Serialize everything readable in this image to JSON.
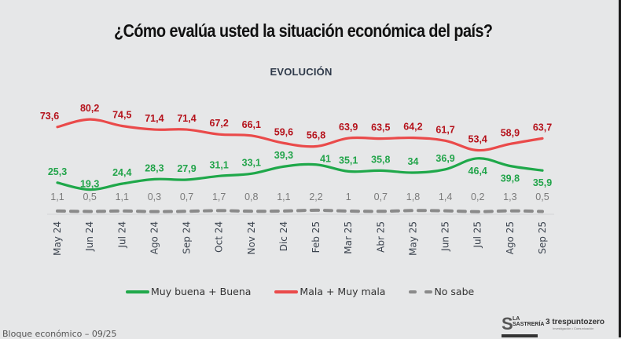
{
  "title": "¿Cómo evalúa usted la situación económica del país?",
  "subtitle": "EVOLUCIÓN",
  "footer": "Bloque económico – 09/25",
  "logos": {
    "left": {
      "mark": "S",
      "name": "LA\nSASTRERÍA"
    },
    "right": {
      "mark": "3",
      "name": "trespuntozero",
      "tag": "Investigación • Comunicación"
    }
  },
  "legend": [
    {
      "label": "Muy buena + Buena",
      "color": "#1fa84a",
      "style": "solid"
    },
    {
      "label": "Mala + Muy mala",
      "color": "#ea4a4a",
      "style": "solid"
    },
    {
      "label": "No sabe",
      "color": "#8a8a8a",
      "style": "dashed"
    }
  ],
  "chart_data": {
    "type": "line",
    "title": "¿Cómo evalúa usted la situación económica del país?",
    "subtitle": "EVOLUCIÓN",
    "xlabel": "",
    "ylabel": "",
    "ylim": [
      0,
      85
    ],
    "grid": false,
    "legend_position": "bottom",
    "categories": [
      "May 24",
      "Jun 24",
      "Jul 24",
      "Ago 24",
      "Sep 24",
      "Oct 24",
      "Nov 24",
      "Dic 24",
      "Feb 25",
      "Mar 25",
      "Abr 25",
      "May 25",
      "Jun 25",
      "Jul 25",
      "Ago 25",
      "Sep 25"
    ],
    "series": [
      {
        "name": "Muy buena + Buena",
        "color": "#1fa84a",
        "label_color": "#22a44a",
        "values": [
          25.3,
          19.3,
          24.4,
          28.3,
          27.9,
          31.1,
          33.1,
          39.3,
          41,
          35.1,
          35.8,
          34,
          36.9,
          46.4,
          39.8,
          35.9
        ],
        "labels": [
          "25,3",
          "19,3",
          "24,4",
          "28,3",
          "27,9",
          "31,1",
          "33,1",
          "39,3",
          "41",
          "35,1",
          "35,8",
          "34",
          "36,9",
          "46,4",
          "39,8",
          "35,9"
        ]
      },
      {
        "name": "Mala + Muy mala",
        "color": "#ea4a4a",
        "label_color": "#b5121b",
        "values": [
          73.6,
          80.2,
          74.5,
          71.4,
          71.4,
          67.2,
          66.1,
          59.6,
          56.8,
          63.9,
          63.5,
          64.2,
          61.7,
          53.4,
          58.9,
          63.7
        ],
        "labels": [
          "73,6",
          "80,2",
          "74,5",
          "71,4",
          "71,4",
          "67,2",
          "66,1",
          "59,6",
          "56,8",
          "63,9",
          "63,5",
          "64,2",
          "61,7",
          "53,4",
          "58,9",
          "63,7"
        ]
      },
      {
        "name": "No sabe",
        "color": "#8a8a8a",
        "label_color": "#7a7a7a",
        "dashed": true,
        "values": [
          1.1,
          0.5,
          1.1,
          0.3,
          0.7,
          1.7,
          0.8,
          1.1,
          2.2,
          1,
          0.7,
          1.8,
          1.4,
          0.2,
          1.3,
          0.5
        ],
        "labels": [
          "1,1",
          "0,5",
          "1,1",
          "0,3",
          "0,7",
          "1,7",
          "0,8",
          "1,1",
          "2,2",
          "1",
          "0,7",
          "1,8",
          "1,4",
          "0,2",
          "1,3",
          "0,5"
        ]
      }
    ]
  }
}
